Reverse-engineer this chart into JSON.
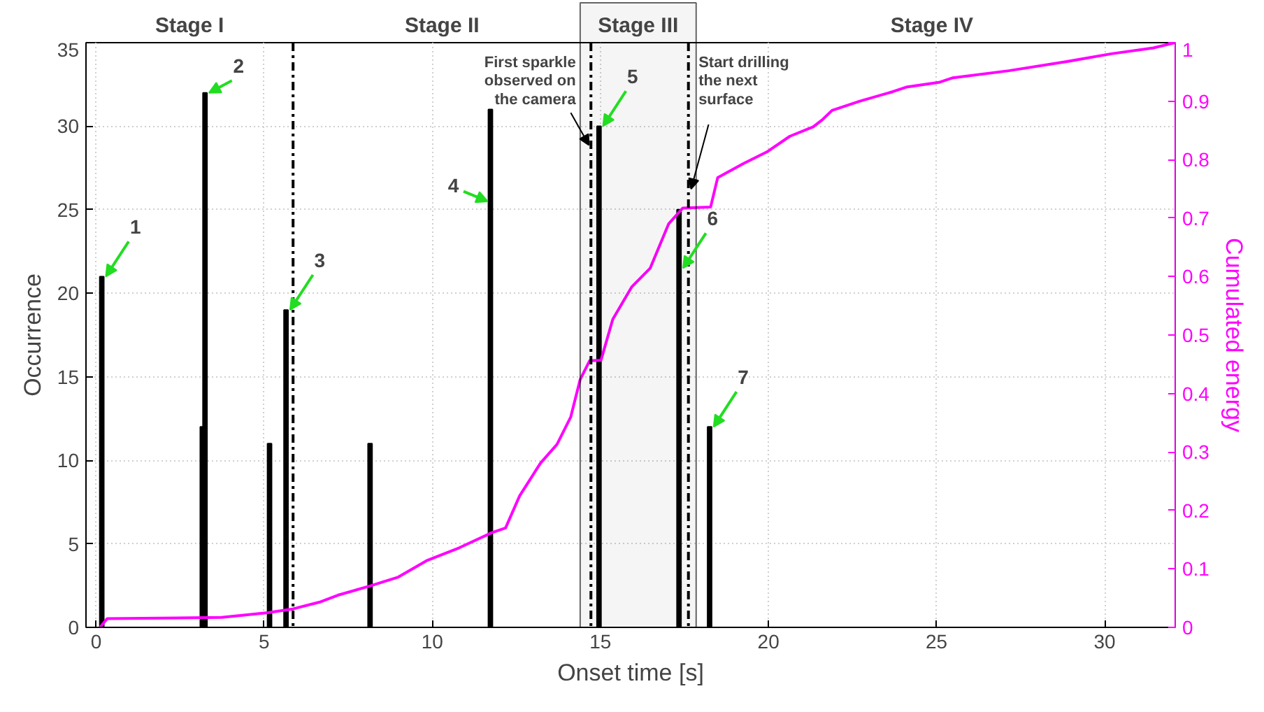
{
  "chart_data": {
    "type": "bar",
    "xlabel": "Onset time [s]",
    "ylabel": "Occurrence",
    "y2label": "Cumulated energy",
    "xlim": [
      -0.3,
      32.1
    ],
    "xticks": [
      0,
      5,
      10,
      15,
      20,
      25,
      30
    ],
    "ylim": [
      0,
      35
    ],
    "yticks": [
      0,
      5,
      10,
      15,
      20,
      25,
      30,
      35
    ],
    "y2lim": [
      0,
      1
    ],
    "y2ticks": [
      0,
      0.1,
      0.2,
      0.3,
      0.4,
      0.5,
      0.6,
      0.7,
      0.8,
      0.9,
      1
    ],
    "grid": true,
    "series": [
      {
        "color": "#000000",
        "x": [
          0.17,
          3.16,
          3.24,
          5.16,
          5.65,
          8.15,
          11.73,
          14.96,
          17.34,
          18.25
        ],
        "values": [
          21,
          12,
          32,
          11,
          19,
          11,
          31,
          30,
          25,
          12
        ]
      },
      {
        "type": "line",
        "axis": "y2",
        "color": "#ff00ff",
        "x": [
          0.12,
          0.33,
          3.73,
          5.11,
          5.81,
          6.64,
          7.19,
          8.16,
          8.99,
          9.83,
          10.8,
          11.77,
          12.18,
          12.6,
          13.22,
          13.71,
          14.12,
          14.4,
          14.68,
          15.02,
          15.37,
          15.93,
          16.48,
          17.03,
          17.45,
          18.28,
          18.49,
          19.25,
          19.95,
          20.64,
          21.33,
          21.6,
          21.89,
          22.72,
          23.69,
          24.1,
          25.07,
          25.49,
          27.15,
          28.81,
          30.2,
          31.45,
          32.1
        ],
        "values": [
          0,
          0.015,
          0.017,
          0.025,
          0.031,
          0.043,
          0.055,
          0.071,
          0.086,
          0.114,
          0.136,
          0.162,
          0.17,
          0.225,
          0.281,
          0.313,
          0.36,
          0.424,
          0.456,
          0.457,
          0.527,
          0.582,
          0.614,
          0.69,
          0.717,
          0.719,
          0.769,
          0.793,
          0.813,
          0.84,
          0.856,
          0.868,
          0.884,
          0.9,
          0.916,
          0.924,
          0.932,
          0.94,
          0.952,
          0.967,
          0.981,
          0.991,
          1
        ]
      }
    ],
    "ref_lines": [
      {
        "axis": "x",
        "value": 5.86,
        "label": null,
        "line_style": "dashdot"
      },
      {
        "axis": "x",
        "value": 14.72,
        "label": "First sparkle observed on the camera",
        "line_style": "dashdot"
      },
      {
        "axis": "x",
        "value": 17.62,
        "label": "Start drilling the next surface",
        "line_style": "dashdot"
      }
    ],
    "bands": [
      {
        "axis": "x",
        "from": 14.4,
        "to": 17.85,
        "label": "Stage III"
      }
    ],
    "annotations": [
      "Stage I",
      "Stage II",
      "Stage IV",
      {
        "text": "1",
        "x": 0.17,
        "y": 21
      },
      {
        "text": "2",
        "x": 3.24,
        "y": 32
      },
      {
        "text": "3",
        "x": 5.65,
        "y": 19
      },
      {
        "text": "4",
        "x": 11.73,
        "y": 25.5
      },
      {
        "text": "5",
        "x": 14.96,
        "y": 30
      },
      {
        "text": "6",
        "x": 17.34,
        "y": 21.5
      },
      {
        "text": "7",
        "x": 18.25,
        "y": 12
      }
    ]
  }
}
